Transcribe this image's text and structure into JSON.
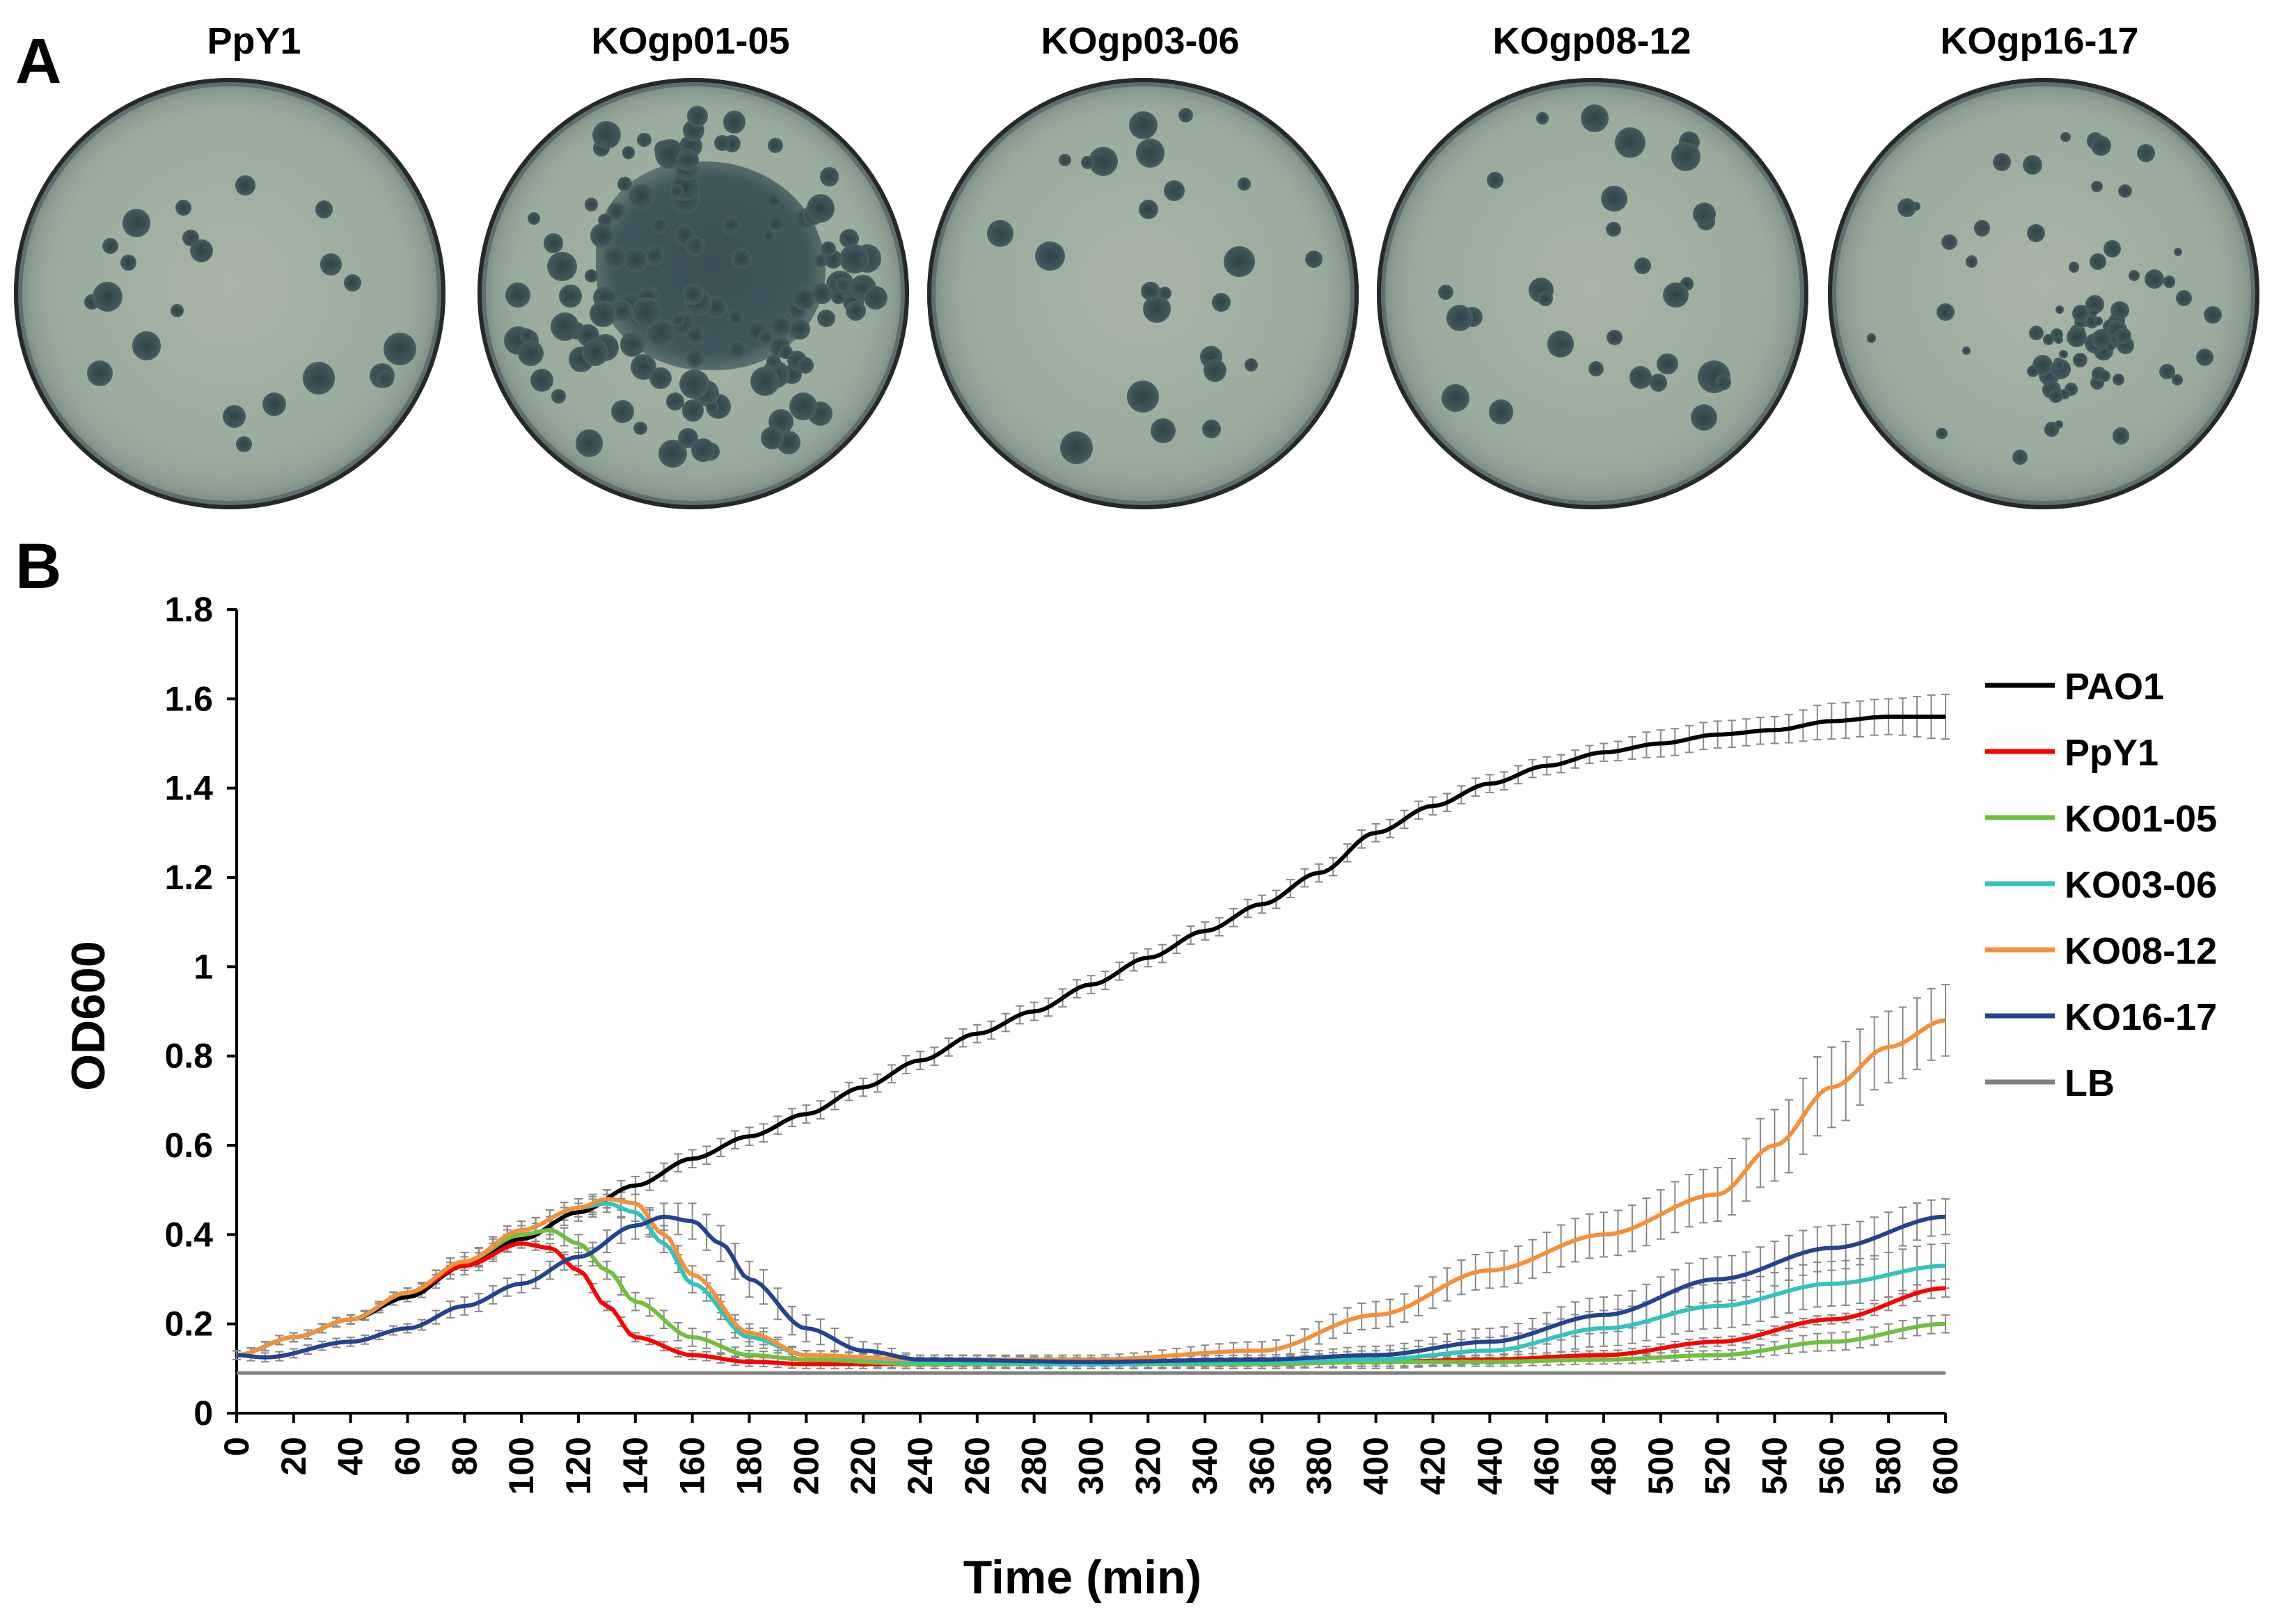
{
  "panels": {
    "a_letter": "A",
    "b_letter": "B"
  },
  "plates": [
    {
      "label": "PpY1",
      "colonies": 22,
      "lysis": "sparse"
    },
    {
      "label": "KOgp01-05",
      "colonies": 130,
      "lysis": "confluent"
    },
    {
      "label": "KOgp03-06",
      "colonies": 24,
      "lysis": "sparse"
    },
    {
      "label": "KOgp08-12",
      "colonies": 30,
      "lysis": "sparse"
    },
    {
      "label": "KOgp16-17",
      "colonies": 80,
      "lysis": "clustered"
    }
  ],
  "chart_data": {
    "type": "line",
    "title": "",
    "xlabel": "Time (min)",
    "ylabel": "OD600",
    "xlim": [
      0,
      600
    ],
    "ylim": [
      0,
      1.8
    ],
    "xticks": [
      0,
      20,
      40,
      60,
      80,
      100,
      120,
      140,
      160,
      180,
      200,
      220,
      240,
      260,
      280,
      300,
      320,
      340,
      360,
      380,
      400,
      420,
      440,
      460,
      480,
      500,
      520,
      540,
      560,
      580,
      600
    ],
    "yticks": [
      0,
      0.2,
      0.4,
      0.6,
      0.8,
      1,
      1.2,
      1.4,
      1.6,
      1.8
    ],
    "ytick_labels": [
      "0",
      "0.2",
      "0.4",
      "0.6",
      "0.8",
      "1",
      "1.2",
      "1.4",
      "1.6",
      "1.8"
    ],
    "legend_position": "right",
    "series": [
      {
        "name": "PAO1",
        "color": "#000000",
        "x": [
          0,
          20,
          40,
          60,
          80,
          100,
          120,
          140,
          160,
          180,
          200,
          220,
          240,
          260,
          280,
          300,
          320,
          340,
          360,
          380,
          400,
          420,
          440,
          460,
          480,
          500,
          520,
          540,
          560,
          580,
          600
        ],
        "y": [
          0.13,
          0.17,
          0.21,
          0.26,
          0.33,
          0.39,
          0.45,
          0.51,
          0.57,
          0.62,
          0.67,
          0.73,
          0.79,
          0.85,
          0.9,
          0.96,
          1.02,
          1.08,
          1.14,
          1.21,
          1.3,
          1.36,
          1.41,
          1.45,
          1.48,
          1.5,
          1.52,
          1.53,
          1.55,
          1.56,
          1.56
        ],
        "err": [
          0.01,
          0.01,
          0.01,
          0.01,
          0.02,
          0.02,
          0.02,
          0.02,
          0.02,
          0.02,
          0.02,
          0.02,
          0.02,
          0.02,
          0.02,
          0.02,
          0.02,
          0.02,
          0.02,
          0.02,
          0.02,
          0.02,
          0.02,
          0.02,
          0.02,
          0.03,
          0.03,
          0.03,
          0.04,
          0.04,
          0.05
        ]
      },
      {
        "name": "PpY1",
        "color": "#ff0000",
        "x": [
          0,
          20,
          40,
          60,
          80,
          100,
          110,
          120,
          130,
          140,
          160,
          180,
          200,
          240,
          300,
          360,
          400,
          440,
          480,
          520,
          560,
          600
        ],
        "y": [
          0.13,
          0.17,
          0.21,
          0.27,
          0.33,
          0.38,
          0.37,
          0.32,
          0.24,
          0.17,
          0.13,
          0.115,
          0.11,
          0.11,
          0.11,
          0.11,
          0.115,
          0.12,
          0.13,
          0.16,
          0.21,
          0.28
        ],
        "err": [
          0.01,
          0.01,
          0.01,
          0.01,
          0.01,
          0.01,
          0.01,
          0.01,
          0.01,
          0.01,
          0.01,
          0.01,
          0.01,
          0.01,
          0.01,
          0.01,
          0.01,
          0.01,
          0.01,
          0.01,
          0.01,
          0.02
        ]
      },
      {
        "name": "KO01-05",
        "color": "#70c040",
        "x": [
          0,
          20,
          40,
          60,
          80,
          100,
          110,
          120,
          130,
          140,
          160,
          180,
          200,
          240,
          300,
          360,
          400,
          440,
          480,
          520,
          560,
          600
        ],
        "y": [
          0.13,
          0.17,
          0.21,
          0.27,
          0.34,
          0.4,
          0.41,
          0.38,
          0.32,
          0.25,
          0.17,
          0.13,
          0.12,
          0.11,
          0.11,
          0.11,
          0.115,
          0.115,
          0.12,
          0.13,
          0.16,
          0.2
        ],
        "err": [
          0.01,
          0.01,
          0.01,
          0.01,
          0.02,
          0.02,
          0.02,
          0.02,
          0.02,
          0.02,
          0.02,
          0.01,
          0.01,
          0.01,
          0.01,
          0.01,
          0.01,
          0.01,
          0.01,
          0.01,
          0.02,
          0.02
        ]
      },
      {
        "name": "KO03-06",
        "color": "#33c3bd",
        "x": [
          0,
          20,
          40,
          60,
          80,
          100,
          120,
          130,
          140,
          150,
          160,
          180,
          200,
          240,
          300,
          360,
          400,
          440,
          480,
          520,
          560,
          600
        ],
        "y": [
          0.13,
          0.17,
          0.21,
          0.27,
          0.34,
          0.41,
          0.46,
          0.47,
          0.45,
          0.38,
          0.29,
          0.17,
          0.13,
          0.115,
          0.11,
          0.115,
          0.12,
          0.14,
          0.19,
          0.24,
          0.29,
          0.33
        ],
        "err": [
          0.01,
          0.01,
          0.01,
          0.01,
          0.02,
          0.02,
          0.02,
          0.02,
          0.02,
          0.02,
          0.02,
          0.02,
          0.01,
          0.01,
          0.01,
          0.01,
          0.02,
          0.03,
          0.04,
          0.05,
          0.05,
          0.05
        ]
      },
      {
        "name": "KO08-12",
        "color": "#f5903a",
        "x": [
          0,
          20,
          40,
          60,
          80,
          100,
          120,
          130,
          140,
          150,
          160,
          180,
          200,
          240,
          300,
          360,
          400,
          440,
          480,
          520,
          540,
          560,
          580,
          600
        ],
        "y": [
          0.13,
          0.17,
          0.21,
          0.27,
          0.34,
          0.41,
          0.46,
          0.48,
          0.47,
          0.4,
          0.31,
          0.18,
          0.13,
          0.12,
          0.12,
          0.14,
          0.22,
          0.32,
          0.4,
          0.49,
          0.6,
          0.73,
          0.82,
          0.88
        ],
        "err": [
          0.01,
          0.01,
          0.01,
          0.01,
          0.02,
          0.02,
          0.02,
          0.02,
          0.02,
          0.02,
          0.02,
          0.02,
          0.01,
          0.01,
          0.01,
          0.02,
          0.03,
          0.04,
          0.05,
          0.06,
          0.08,
          0.09,
          0.08,
          0.08
        ]
      },
      {
        "name": "KO16-17",
        "color": "#23438f",
        "x": [
          0,
          10,
          40,
          60,
          80,
          100,
          120,
          140,
          150,
          160,
          170,
          180,
          200,
          220,
          240,
          300,
          360,
          400,
          440,
          480,
          520,
          560,
          600
        ],
        "y": [
          0.13,
          0.125,
          0.16,
          0.19,
          0.24,
          0.29,
          0.35,
          0.42,
          0.44,
          0.43,
          0.38,
          0.3,
          0.19,
          0.14,
          0.12,
          0.115,
          0.12,
          0.13,
          0.16,
          0.22,
          0.3,
          0.37,
          0.44
        ],
        "err": [
          0.01,
          0.01,
          0.01,
          0.01,
          0.02,
          0.02,
          0.02,
          0.03,
          0.03,
          0.04,
          0.04,
          0.04,
          0.03,
          0.02,
          0.01,
          0.01,
          0.01,
          0.02,
          0.03,
          0.04,
          0.05,
          0.05,
          0.04
        ]
      },
      {
        "name": "LB",
        "color": "#808080",
        "x": [
          0,
          600
        ],
        "y": [
          0.09,
          0.09
        ],
        "err": [
          0,
          0
        ]
      }
    ]
  }
}
